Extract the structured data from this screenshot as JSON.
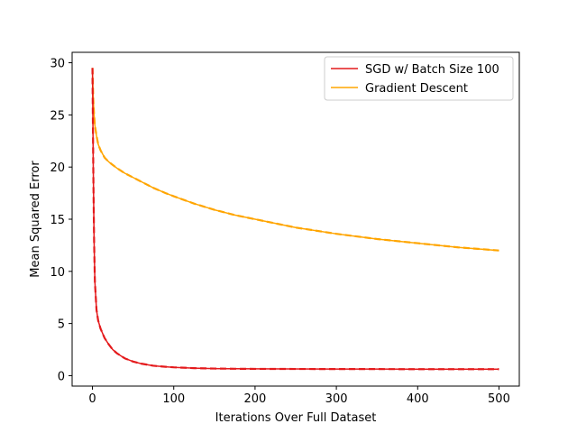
{
  "chart_data": {
    "type": "line",
    "title": "",
    "xlabel": "Iterations Over Full Dataset",
    "ylabel": "Mean Squared Error",
    "xlim": [
      -25,
      525
    ],
    "ylim": [
      -1,
      31
    ],
    "xticks": [
      0,
      100,
      200,
      300,
      400,
      500
    ],
    "yticks": [
      0,
      5,
      10,
      15,
      20,
      25,
      30
    ],
    "grid": false,
    "legend_position": "top-right",
    "series": [
      {
        "name": "SGD w/ Batch Size 100",
        "color": "#e41a1c",
        "style": "solid",
        "x": [
          0,
          1,
          2,
          3,
          5,
          7,
          10,
          15,
          20,
          25,
          30,
          40,
          50,
          60,
          75,
          90,
          100,
          125,
          150,
          175,
          200,
          250,
          300,
          350,
          400,
          450,
          500
        ],
        "y": [
          29.5,
          20.0,
          13.0,
          9.0,
          6.3,
          5.3,
          4.5,
          3.6,
          3.0,
          2.5,
          2.15,
          1.65,
          1.35,
          1.15,
          0.95,
          0.85,
          0.8,
          0.72,
          0.68,
          0.66,
          0.65,
          0.64,
          0.63,
          0.63,
          0.62,
          0.62,
          0.62
        ]
      },
      {
        "name": "Gradient Descent",
        "color": "#ffa500",
        "style": "solid",
        "x": [
          0,
          1,
          2,
          3,
          5,
          7,
          10,
          15,
          20,
          25,
          30,
          40,
          50,
          60,
          75,
          90,
          100,
          125,
          150,
          175,
          200,
          250,
          300,
          350,
          400,
          450,
          500
        ],
        "y": [
          29.5,
          26.5,
          25.0,
          24.0,
          23.0,
          22.2,
          21.6,
          20.9,
          20.5,
          20.2,
          19.9,
          19.4,
          19.0,
          18.6,
          18.0,
          17.5,
          17.2,
          16.5,
          15.9,
          15.4,
          15.0,
          14.2,
          13.6,
          13.1,
          12.7,
          12.3,
          12.0
        ]
      }
    ]
  }
}
